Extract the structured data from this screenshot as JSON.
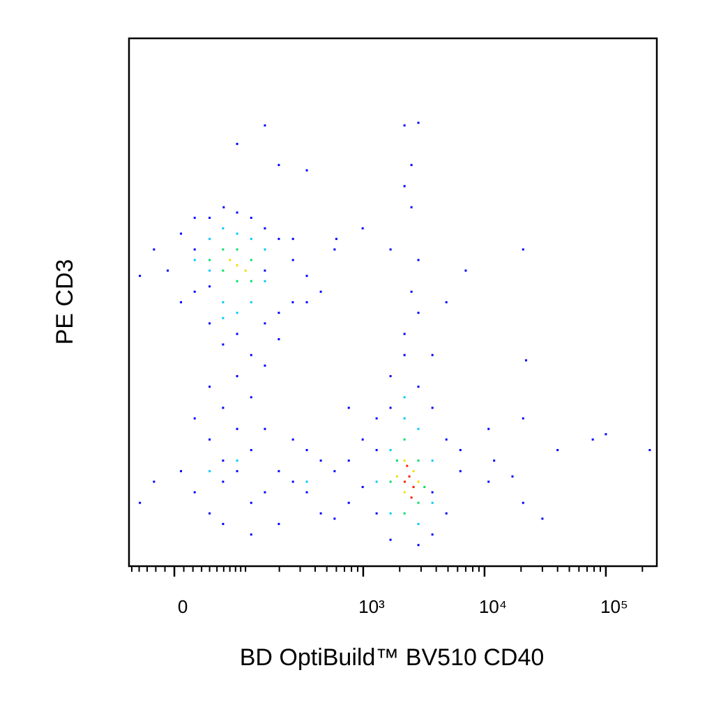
{
  "chart_data": {
    "type": "scatter",
    "x_label": "BD OptiBuild™ BV510 CD40",
    "y_label": "PE CD3",
    "xscale": "biexponential",
    "xlim": [
      -54,
      263000
    ],
    "ylim": [
      0,
      100
    ],
    "xticks": [
      {
        "value": 0,
        "label": "0"
      },
      {
        "value": 1000,
        "label": "10³"
      },
      {
        "value": 10000,
        "label": "10⁴"
      },
      {
        "value": 100000,
        "label": "10⁵"
      }
    ],
    "xminorticks": [
      -50,
      -40,
      -30,
      -20,
      -10,
      10,
      20,
      30,
      40,
      50,
      60,
      70,
      80,
      90,
      100,
      200,
      300,
      400,
      500,
      600,
      700,
      800,
      900,
      2000,
      3000,
      4000,
      5000,
      6000,
      7000,
      8000,
      9000,
      20000,
      30000,
      40000,
      50000,
      60000,
      70000,
      80000,
      90000,
      200000
    ],
    "series": [
      {
        "color": "#0000ff",
        "x": [
          22,
          40,
          60,
          83,
          113,
          150,
          198,
          261,
          341,
          260,
          198,
          150,
          83,
          40,
          7,
          -7,
          -22,
          7,
          22,
          59,
          113,
          150,
          83,
          40,
          113,
          59,
          198,
          341,
          446,
          580,
          261,
          -39,
          22,
          150,
          40,
          22,
          40,
          59,
          83,
          113,
          150,
          198,
          261,
          341,
          446,
          580,
          760,
          990,
          22,
          40,
          59,
          83,
          113,
          7,
          -22,
          -39,
          198,
          261,
          341,
          446,
          150,
          760,
          580,
          59,
          113,
          1290,
          1680,
          2190,
          2850,
          3720,
          4850,
          6330,
          4850,
          3720,
          2850,
          1680,
          1290,
          990,
          1290,
          2190,
          2850,
          2500,
          3720,
          6330,
          10800,
          1680,
          3720,
          150,
          83,
          198,
          341,
          2190,
          2850,
          2500,
          2190,
          2500,
          1680,
          990,
          2850,
          4850,
          7000,
          20800,
          22000,
          20800,
          40000,
          78000,
          100000,
          230000,
          600,
          760,
          10800,
          17000,
          20800,
          30000,
          12000
        ],
        "values": [
          60,
          66,
          68,
          67,
          66,
          64,
          62,
          58,
          55,
          50,
          48,
          46,
          44,
          46,
          50,
          56,
          60,
          63,
          52,
          42,
          40,
          38,
          36,
          34,
          32,
          30,
          43,
          50,
          52,
          60,
          62,
          55,
          66,
          56,
          53,
          28,
          24,
          20,
          18,
          22,
          14,
          18,
          16,
          14,
          20,
          18,
          12,
          24,
          14,
          10,
          8,
          26,
          12,
          18,
          16,
          12,
          8,
          24,
          22,
          10,
          26,
          20,
          9,
          16,
          6,
          28,
          36,
          40,
          34,
          30,
          24,
          18,
          10,
          6,
          4,
          5,
          10,
          15,
          22,
          44,
          48,
          52,
          14,
          22,
          16,
          30,
          40,
          83.5,
          80,
          76,
          75,
          83.5,
          84,
          76,
          72,
          68,
          60,
          64,
          58,
          50,
          56,
          60,
          39,
          28,
          22,
          24,
          25,
          22,
          62,
          30,
          26,
          17,
          12,
          9,
          20
        ]
      },
      {
        "color": "#00c8ff",
        "x": [
          40,
          59,
          83,
          113,
          150,
          150,
          113,
          83,
          59,
          40,
          22,
          59,
          1680,
          2190,
          2850,
          3720,
          3720,
          2850,
          1680,
          1290,
          2190,
          40,
          83,
          341
        ],
        "values": [
          62,
          64,
          63,
          62,
          60,
          54,
          50,
          48,
          50,
          56,
          58,
          47,
          22,
          28,
          26,
          20,
          12,
          8,
          10,
          16,
          32,
          18,
          20,
          16
        ]
      },
      {
        "color": "#00e060",
        "x": [
          59,
          83,
          113,
          83,
          59,
          113,
          40,
          2190,
          2850,
          3200,
          2850,
          1680,
          1900,
          2190
        ],
        "values": [
          60,
          60,
          58,
          54,
          56,
          54,
          58,
          24,
          20,
          15,
          12,
          16,
          20,
          10
        ]
      },
      {
        "color": "#f0e000",
        "x": [
          83,
          70,
          100,
          2190,
          2600,
          2850,
          2190,
          1900
        ],
        "values": [
          57,
          58,
          56,
          20,
          18,
          16,
          14,
          17
        ]
      },
      {
        "color": "#ff2000",
        "x": [
          2400,
          2600,
          2300,
          2500,
          2200
        ],
        "values": [
          17,
          15,
          19,
          13,
          16
        ]
      }
    ]
  }
}
